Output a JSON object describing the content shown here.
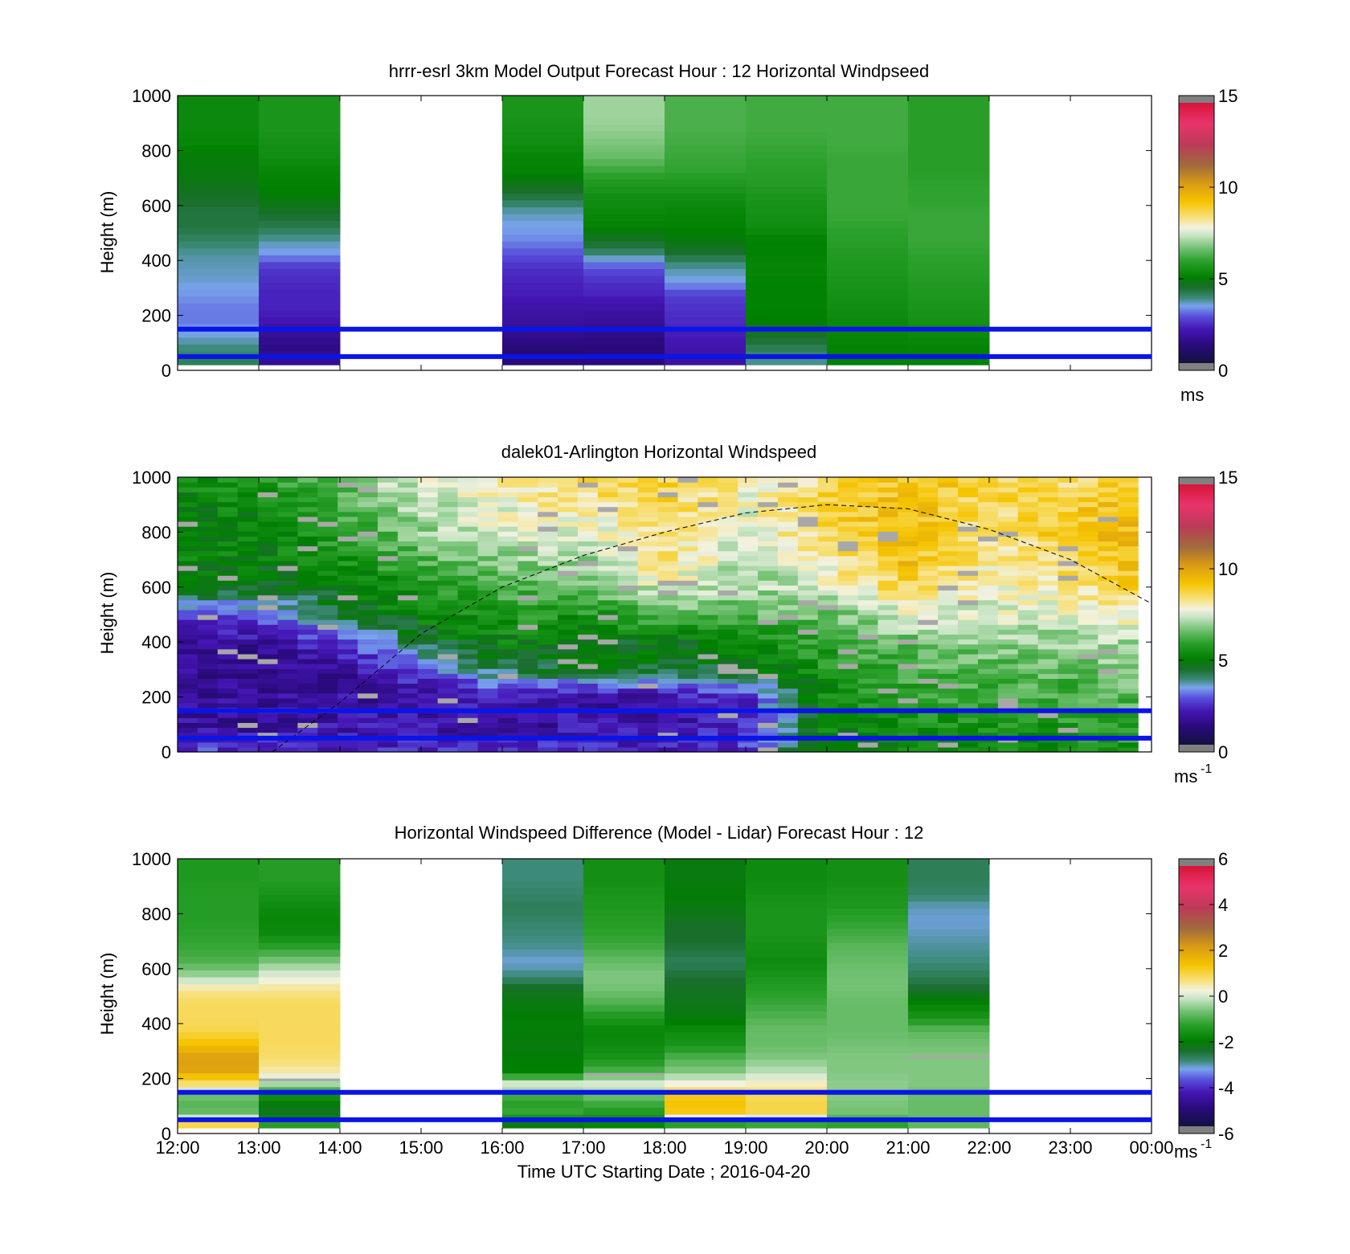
{
  "figure": {
    "x_axis_title": "Time UTC  Starting Date ; 2016-04-20",
    "x_tick_labels": [
      "12:00",
      "13:00",
      "14:00",
      "15:00",
      "16:00",
      "17:00",
      "18:00",
      "19:00",
      "20:00",
      "21:00",
      "22:00",
      "23:00",
      "00:00"
    ]
  },
  "chart_data": [
    {
      "type": "heatmap",
      "title": "hrrr-esrl 3km Model Output   Forecast Hour : 12 Horizontal Windpseed",
      "ylabel": "Height (m)",
      "xlim": [
        "12:00",
        "00:00"
      ],
      "ylim": [
        0,
        1000
      ],
      "y_ticks": [
        0,
        200,
        400,
        600,
        800,
        1000
      ],
      "colorbar": {
        "min": 0,
        "max": 15,
        "ticks": [
          0,
          5,
          10,
          15
        ],
        "unit": "ms",
        "unit_sup": ""
      },
      "reference_lines_m": [
        50,
        150
      ],
      "reference_line_color": "#0a14e6",
      "hours_start": [
        12,
        13,
        16,
        17,
        18,
        19,
        20,
        21
      ],
      "heights_m": [
        25,
        75,
        125,
        175,
        225,
        275,
        325,
        375,
        425,
        475,
        525,
        575,
        625,
        675,
        725,
        775,
        825,
        875,
        925,
        975
      ],
      "values": [
        [
          4.0,
          3.8,
          3.4,
          3.0,
          3.0,
          3.2,
          3.4,
          3.5,
          3.6,
          3.9,
          4.2,
          4.2,
          4.4,
          4.6,
          4.8,
          4.8,
          5.1,
          5.2,
          5.2,
          5.2
        ],
        [
          1.4,
          1.2,
          1.4,
          1.9,
          2.1,
          2.1,
          2.2,
          2.4,
          3.2,
          3.6,
          4.1,
          4.4,
          4.8,
          5.0,
          5.1,
          5.3,
          5.4,
          5.5,
          5.5,
          5.5
        ],
        [
          1.0,
          0.9,
          1.3,
          1.6,
          1.7,
          2.0,
          2.1,
          2.3,
          2.7,
          3.1,
          3.3,
          3.5,
          4.1,
          4.6,
          5.0,
          5.1,
          5.3,
          5.4,
          5.5,
          5.5
        ],
        [
          1.1,
          1.0,
          1.2,
          1.5,
          1.7,
          2.1,
          2.3,
          2.7,
          3.8,
          4.5,
          5.0,
          5.2,
          5.3,
          5.6,
          6.0,
          6.5,
          6.7,
          6.9,
          7.0,
          7.0
        ],
        [
          1.6,
          1.8,
          2.0,
          2.2,
          2.3,
          2.5,
          3.3,
          3.6,
          4.3,
          4.8,
          5.0,
          5.1,
          5.3,
          5.6,
          5.9,
          6.0,
          6.1,
          6.2,
          6.2,
          6.2
        ],
        [
          3.6,
          4.0,
          4.4,
          4.9,
          5.0,
          5.0,
          5.0,
          5.1,
          5.0,
          5.0,
          5.3,
          5.4,
          5.5,
          5.7,
          5.8,
          5.9,
          6.0,
          6.1,
          6.1,
          6.1
        ],
        [
          5.0,
          5.0,
          5.1,
          5.2,
          5.3,
          5.4,
          5.5,
          5.6,
          5.7,
          5.8,
          5.9,
          6.0,
          6.0,
          6.0,
          6.0,
          6.0,
          6.1,
          6.1,
          6.1,
          6.1
        ],
        [
          5.0,
          5.0,
          5.2,
          5.4,
          5.5,
          5.6,
          5.7,
          5.8,
          5.9,
          6.0,
          6.0,
          6.0,
          5.9,
          5.9,
          5.8,
          5.8,
          5.8,
          5.8,
          5.8,
          5.8
        ]
      ]
    },
    {
      "type": "heatmap",
      "title": "dalek01-Arlington  Horizontal Windspeed",
      "ylabel": "Height (m)",
      "xlim": [
        "12:00",
        "00:00"
      ],
      "ylim": [
        0,
        1000
      ],
      "y_ticks": [
        0,
        200,
        400,
        600,
        800,
        1000
      ],
      "colorbar": {
        "min": 0,
        "max": 15,
        "ticks": [
          0,
          5,
          10,
          15
        ],
        "unit": "ms",
        "unit_sup": "-1"
      },
      "reference_lines_m": [
        50,
        150
      ],
      "reference_line_color": "#0a14e6",
      "data_extent": [
        "12:00",
        "23:50"
      ],
      "time_points": [
        "12:00",
        "13:00",
        "14:00",
        "15:00",
        "16:00",
        "17:00",
        "18:00",
        "19:00",
        "20:00",
        "21:00",
        "22:00",
        "23:00",
        "23:50"
      ],
      "heights_m": [
        25,
        100,
        200,
        300,
        400,
        500,
        600,
        700,
        800,
        900,
        975
      ],
      "values": [
        [
          2.6,
          1.6,
          1.5,
          1.4,
          1.4,
          2.2,
          4.8,
          5.2,
          5.0,
          5.0,
          5.2
        ],
        [
          2.2,
          1.5,
          1.4,
          1.2,
          1.6,
          2.6,
          4.5,
          4.8,
          5.0,
          5.2,
          5.6
        ],
        [
          2.0,
          1.8,
          1.6,
          1.5,
          2.4,
          4.5,
          4.5,
          5.4,
          5.8,
          6.0,
          6.5
        ],
        [
          2.2,
          1.8,
          1.6,
          2.6,
          4.3,
          5.0,
          5.6,
          6.2,
          6.8,
          7.2,
          7.6
        ],
        [
          2.0,
          1.4,
          2.0,
          4.0,
          5.0,
          5.6,
          6.2,
          6.8,
          7.5,
          7.8,
          8.0
        ],
        [
          2.2,
          1.8,
          1.6,
          4.6,
          4.8,
          5.5,
          6.4,
          7.0,
          7.5,
          8.2,
          8.6
        ],
        [
          2.0,
          1.7,
          1.8,
          4.3,
          4.6,
          6.2,
          7.6,
          8.5,
          8.4,
          8.8,
          8.8
        ],
        [
          2.4,
          2.1,
          2.2,
          4.6,
          5.0,
          6.4,
          7.0,
          7.0,
          7.5,
          7.8,
          8.0
        ],
        [
          5.0,
          5.0,
          5.2,
          5.4,
          6.0,
          6.5,
          7.5,
          8.2,
          8.6,
          8.8,
          8.6
        ],
        [
          5.0,
          5.2,
          5.8,
          6.2,
          6.5,
          7.6,
          8.8,
          9.4,
          9.6,
          9.4,
          9.2
        ],
        [
          5.2,
          5.6,
          6.0,
          6.4,
          6.8,
          7.5,
          7.8,
          8.0,
          8.2,
          8.6,
          8.8
        ],
        [
          5.4,
          5.6,
          6.0,
          6.4,
          7.0,
          7.6,
          8.2,
          8.8,
          9.2,
          9.0,
          8.6
        ],
        [
          5.6,
          6.0,
          6.4,
          6.8,
          7.2,
          8.0,
          9.0,
          9.4,
          9.6,
          9.4,
          9.2
        ]
      ],
      "annotation_curve": {
        "style": "dashed black",
        "points": [
          [
            "13:10",
            0
          ],
          [
            "14:00",
            180
          ],
          [
            "15:00",
            430
          ],
          [
            "16:00",
            600
          ],
          [
            "17:00",
            715
          ],
          [
            "18:00",
            800
          ],
          [
            "19:00",
            870
          ],
          [
            "20:00",
            900
          ],
          [
            "21:00",
            885
          ],
          [
            "22:00",
            810
          ],
          [
            "23:00",
            700
          ],
          [
            "00:00",
            540
          ]
        ]
      }
    },
    {
      "type": "heatmap",
      "title": "Horizontal Windspeed Difference (Model - Lidar) Forecast Hour : 12",
      "ylabel": "Height (m)",
      "xlim": [
        "12:00",
        "00:00"
      ],
      "ylim": [
        0,
        1000
      ],
      "y_ticks": [
        0,
        200,
        400,
        600,
        800,
        1000
      ],
      "colorbar": {
        "min": -6,
        "max": 6,
        "ticks": [
          -6,
          -4,
          -2,
          0,
          2,
          4,
          6
        ],
        "unit": "ms",
        "unit_sup": "-1"
      },
      "reference_lines_m": [
        50,
        150
      ],
      "reference_line_color": "#0a14e6",
      "hours_start": [
        12,
        13,
        16,
        17,
        18,
        19,
        20,
        21
      ],
      "heights_m": [
        25,
        75,
        125,
        175,
        225,
        275,
        325,
        375,
        425,
        475,
        525,
        575,
        625,
        675,
        725,
        775,
        825,
        875,
        925,
        975
      ],
      "values": [
        [
          1.3,
          -0.8,
          -1.0,
          0.6,
          2.0,
          2.2,
          1.5,
          1.0,
          0.9,
          0.9,
          0.6,
          -0.4,
          -1.0,
          -1.2,
          -1.3,
          -1.4,
          -1.4,
          -1.4,
          -1.5,
          -1.5
        ],
        [
          -1.2,
          -2.4,
          -2.0,
          -0.5,
          0.5,
          0.8,
          0.9,
          0.9,
          0.9,
          0.9,
          0.6,
          0.1,
          -0.6,
          -1.3,
          -1.8,
          -1.9,
          -1.8,
          -1.6,
          -1.4,
          -1.4
        ],
        [
          -2.4,
          -1.2,
          -1.4,
          0.3,
          -2.0,
          -2.1,
          -2.2,
          -2.1,
          -2.1,
          -2.2,
          -2.4,
          -3.0,
          -3.3,
          -3.1,
          -3.0,
          -2.9,
          -2.8,
          -2.9,
          -3.0,
          -3.0
        ],
        [
          -2.0,
          -1.5,
          -1.0,
          0.2,
          -1.0,
          -1.6,
          -1.8,
          -1.9,
          -1.5,
          -1.0,
          -0.7,
          -0.6,
          -0.8,
          -1.1,
          -1.3,
          -1.4,
          -1.5,
          -1.6,
          -1.7,
          -1.7
        ],
        [
          -1.8,
          1.3,
          1.5,
          0.4,
          -0.6,
          -1.0,
          -1.6,
          -1.8,
          -2.2,
          -2.3,
          -2.4,
          -2.6,
          -2.8,
          -2.6,
          -2.5,
          -2.4,
          -2.2,
          -2.1,
          -2.2,
          -2.2
        ],
        [
          -1.6,
          1.0,
          1.0,
          0.5,
          -0.2,
          -0.6,
          -0.8,
          -0.8,
          -1.0,
          -1.2,
          -1.4,
          -1.6,
          -1.8,
          -1.7,
          -1.6,
          -1.6,
          -1.6,
          -1.7,
          -1.8,
          -1.8
        ],
        [
          -1.4,
          -0.7,
          -0.6,
          -0.5,
          -0.6,
          -0.6,
          -0.7,
          -0.8,
          -0.8,
          -0.8,
          -0.7,
          -0.7,
          -0.8,
          -0.9,
          -1.1,
          -1.3,
          -1.5,
          -1.6,
          -1.7,
          -1.7
        ],
        [
          -0.9,
          -0.8,
          -0.8,
          -0.6,
          -0.6,
          -0.6,
          -0.7,
          -0.9,
          -1.6,
          -2.0,
          -2.5,
          -2.8,
          -3.0,
          -3.1,
          -3.2,
          -3.3,
          -3.2,
          -2.9,
          -2.8,
          -2.8
        ]
      ]
    }
  ],
  "colors": {
    "reference_line": "#0a14e6",
    "missing": "#a8a8a8",
    "colorbar_end_cap": "#808080"
  }
}
